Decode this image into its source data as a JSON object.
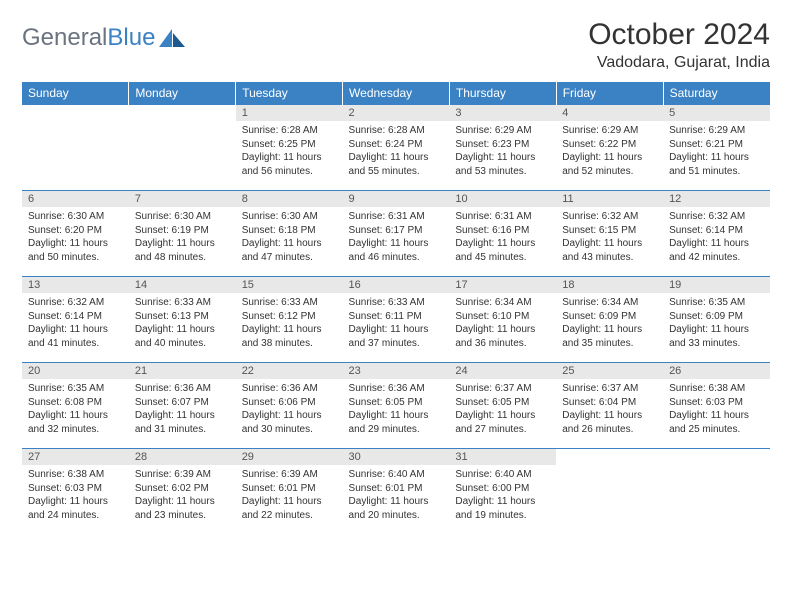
{
  "logo": {
    "part1": "General",
    "part2": "Blue"
  },
  "title": "October 2024",
  "location": "Vadodara, Gujarat, India",
  "colors": {
    "header_bg": "#3b82c4",
    "header_text": "#ffffff",
    "daynum_bg": "#e8e8e8",
    "cell_border": "#3b82c4",
    "logo_gray": "#6b7280",
    "logo_blue": "#3b82c4"
  },
  "weekdays": [
    "Sunday",
    "Monday",
    "Tuesday",
    "Wednesday",
    "Thursday",
    "Friday",
    "Saturday"
  ],
  "weeks": [
    [
      {
        "n": "",
        "sr": "",
        "ss": "",
        "dl": ""
      },
      {
        "n": "",
        "sr": "",
        "ss": "",
        "dl": ""
      },
      {
        "n": "1",
        "sr": "Sunrise: 6:28 AM",
        "ss": "Sunset: 6:25 PM",
        "dl": "Daylight: 11 hours and 56 minutes."
      },
      {
        "n": "2",
        "sr": "Sunrise: 6:28 AM",
        "ss": "Sunset: 6:24 PM",
        "dl": "Daylight: 11 hours and 55 minutes."
      },
      {
        "n": "3",
        "sr": "Sunrise: 6:29 AM",
        "ss": "Sunset: 6:23 PM",
        "dl": "Daylight: 11 hours and 53 minutes."
      },
      {
        "n": "4",
        "sr": "Sunrise: 6:29 AM",
        "ss": "Sunset: 6:22 PM",
        "dl": "Daylight: 11 hours and 52 minutes."
      },
      {
        "n": "5",
        "sr": "Sunrise: 6:29 AM",
        "ss": "Sunset: 6:21 PM",
        "dl": "Daylight: 11 hours and 51 minutes."
      }
    ],
    [
      {
        "n": "6",
        "sr": "Sunrise: 6:30 AM",
        "ss": "Sunset: 6:20 PM",
        "dl": "Daylight: 11 hours and 50 minutes."
      },
      {
        "n": "7",
        "sr": "Sunrise: 6:30 AM",
        "ss": "Sunset: 6:19 PM",
        "dl": "Daylight: 11 hours and 48 minutes."
      },
      {
        "n": "8",
        "sr": "Sunrise: 6:30 AM",
        "ss": "Sunset: 6:18 PM",
        "dl": "Daylight: 11 hours and 47 minutes."
      },
      {
        "n": "9",
        "sr": "Sunrise: 6:31 AM",
        "ss": "Sunset: 6:17 PM",
        "dl": "Daylight: 11 hours and 46 minutes."
      },
      {
        "n": "10",
        "sr": "Sunrise: 6:31 AM",
        "ss": "Sunset: 6:16 PM",
        "dl": "Daylight: 11 hours and 45 minutes."
      },
      {
        "n": "11",
        "sr": "Sunrise: 6:32 AM",
        "ss": "Sunset: 6:15 PM",
        "dl": "Daylight: 11 hours and 43 minutes."
      },
      {
        "n": "12",
        "sr": "Sunrise: 6:32 AM",
        "ss": "Sunset: 6:14 PM",
        "dl": "Daylight: 11 hours and 42 minutes."
      }
    ],
    [
      {
        "n": "13",
        "sr": "Sunrise: 6:32 AM",
        "ss": "Sunset: 6:14 PM",
        "dl": "Daylight: 11 hours and 41 minutes."
      },
      {
        "n": "14",
        "sr": "Sunrise: 6:33 AM",
        "ss": "Sunset: 6:13 PM",
        "dl": "Daylight: 11 hours and 40 minutes."
      },
      {
        "n": "15",
        "sr": "Sunrise: 6:33 AM",
        "ss": "Sunset: 6:12 PM",
        "dl": "Daylight: 11 hours and 38 minutes."
      },
      {
        "n": "16",
        "sr": "Sunrise: 6:33 AM",
        "ss": "Sunset: 6:11 PM",
        "dl": "Daylight: 11 hours and 37 minutes."
      },
      {
        "n": "17",
        "sr": "Sunrise: 6:34 AM",
        "ss": "Sunset: 6:10 PM",
        "dl": "Daylight: 11 hours and 36 minutes."
      },
      {
        "n": "18",
        "sr": "Sunrise: 6:34 AM",
        "ss": "Sunset: 6:09 PM",
        "dl": "Daylight: 11 hours and 35 minutes."
      },
      {
        "n": "19",
        "sr": "Sunrise: 6:35 AM",
        "ss": "Sunset: 6:09 PM",
        "dl": "Daylight: 11 hours and 33 minutes."
      }
    ],
    [
      {
        "n": "20",
        "sr": "Sunrise: 6:35 AM",
        "ss": "Sunset: 6:08 PM",
        "dl": "Daylight: 11 hours and 32 minutes."
      },
      {
        "n": "21",
        "sr": "Sunrise: 6:36 AM",
        "ss": "Sunset: 6:07 PM",
        "dl": "Daylight: 11 hours and 31 minutes."
      },
      {
        "n": "22",
        "sr": "Sunrise: 6:36 AM",
        "ss": "Sunset: 6:06 PM",
        "dl": "Daylight: 11 hours and 30 minutes."
      },
      {
        "n": "23",
        "sr": "Sunrise: 6:36 AM",
        "ss": "Sunset: 6:05 PM",
        "dl": "Daylight: 11 hours and 29 minutes."
      },
      {
        "n": "24",
        "sr": "Sunrise: 6:37 AM",
        "ss": "Sunset: 6:05 PM",
        "dl": "Daylight: 11 hours and 27 minutes."
      },
      {
        "n": "25",
        "sr": "Sunrise: 6:37 AM",
        "ss": "Sunset: 6:04 PM",
        "dl": "Daylight: 11 hours and 26 minutes."
      },
      {
        "n": "26",
        "sr": "Sunrise: 6:38 AM",
        "ss": "Sunset: 6:03 PM",
        "dl": "Daylight: 11 hours and 25 minutes."
      }
    ],
    [
      {
        "n": "27",
        "sr": "Sunrise: 6:38 AM",
        "ss": "Sunset: 6:03 PM",
        "dl": "Daylight: 11 hours and 24 minutes."
      },
      {
        "n": "28",
        "sr": "Sunrise: 6:39 AM",
        "ss": "Sunset: 6:02 PM",
        "dl": "Daylight: 11 hours and 23 minutes."
      },
      {
        "n": "29",
        "sr": "Sunrise: 6:39 AM",
        "ss": "Sunset: 6:01 PM",
        "dl": "Daylight: 11 hours and 22 minutes."
      },
      {
        "n": "30",
        "sr": "Sunrise: 6:40 AM",
        "ss": "Sunset: 6:01 PM",
        "dl": "Daylight: 11 hours and 20 minutes."
      },
      {
        "n": "31",
        "sr": "Sunrise: 6:40 AM",
        "ss": "Sunset: 6:00 PM",
        "dl": "Daylight: 11 hours and 19 minutes."
      },
      {
        "n": "",
        "sr": "",
        "ss": "",
        "dl": ""
      },
      {
        "n": "",
        "sr": "",
        "ss": "",
        "dl": ""
      }
    ]
  ]
}
